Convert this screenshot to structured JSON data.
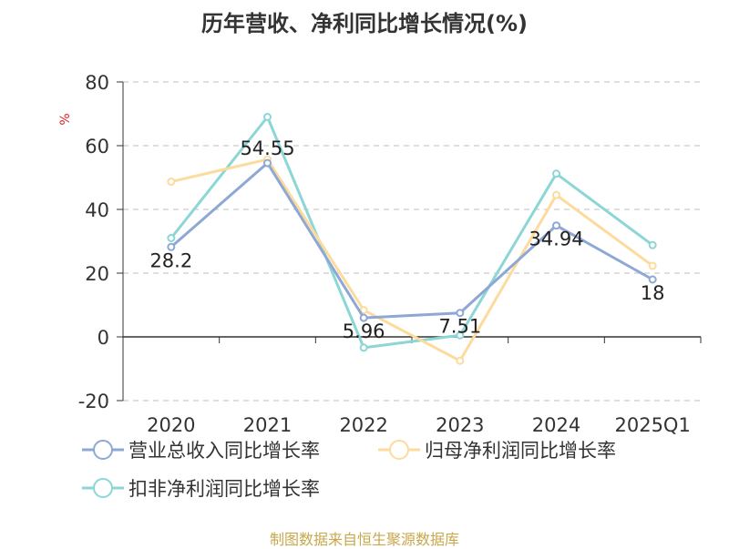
{
  "chart_data": {
    "type": "line",
    "title": "历年营收、净利同比增长情况(%)",
    "ylabel": "%",
    "xlabel": "",
    "ylim": [
      -20,
      80
    ],
    "yticks": [
      -20,
      0,
      20,
      40,
      60,
      80
    ],
    "grid": true,
    "legend_position": "bottom",
    "categories": [
      "2020",
      "2021",
      "2022",
      "2023",
      "2024",
      "2025Q1"
    ],
    "series": [
      {
        "name": "营业总收入同比增长率",
        "color": "#8ea8d5",
        "values": [
          28.2,
          54.55,
          5.96,
          7.51,
          34.94,
          18
        ],
        "labels": [
          "28.2",
          "54.55",
          "5.96",
          "7.51",
          "34.94",
          "18"
        ]
      },
      {
        "name": "归母净利润同比增长率",
        "color": "#fcdb9c",
        "values": [
          48.7,
          55.7,
          8.4,
          -7.5,
          44.5,
          22.3
        ]
      },
      {
        "name": "扣非净利润同比增长率",
        "color": "#8dd6d6",
        "values": [
          31.0,
          69.0,
          -3.4,
          0.5,
          51.2,
          28.8
        ]
      }
    ]
  },
  "source_note": "制图数据来自恒生聚源数据库"
}
